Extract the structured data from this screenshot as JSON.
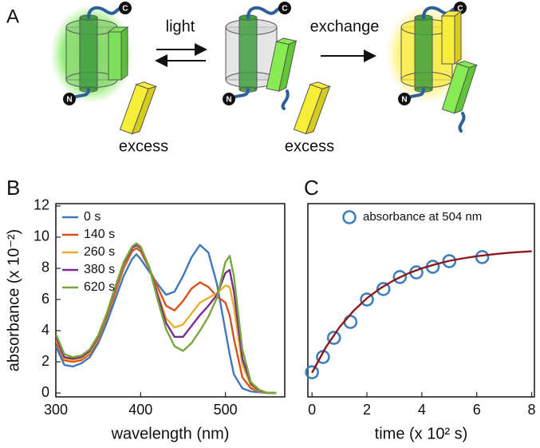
{
  "diagram": {
    "panel_label": "A",
    "steps": [
      "light",
      "exchange"
    ],
    "excess_labels": [
      "excess",
      "excess"
    ],
    "termini": [
      {
        "c": "C",
        "n": "N"
      },
      {
        "c": "C",
        "n": "N"
      },
      {
        "c": "C",
        "n": "N"
      }
    ]
  },
  "chart_data": [
    {
      "type": "line",
      "panel_label": "B",
      "x_label": "wavelength (nm)",
      "y_label": "absorbance (x 10⁻²)",
      "xlim": [
        300,
        570
      ],
      "ylim": [
        -0.25,
        12.15
      ],
      "xticks": [
        300,
        400,
        500
      ],
      "yticks": [
        0,
        2,
        4,
        6,
        8,
        10,
        12
      ],
      "legend": "top-left",
      "x": [
        300,
        310,
        320,
        330,
        340,
        350,
        360,
        370,
        380,
        390,
        395,
        400,
        410,
        420,
        430,
        440,
        450,
        460,
        470,
        480,
        490,
        500,
        505,
        510,
        520,
        530,
        540,
        550,
        560
      ],
      "series": [
        {
          "name": "0 s",
          "color": "#3f78bd",
          "values": [
            3.0,
            1.8,
            1.7,
            1.9,
            2.3,
            3.2,
            4.5,
            6.0,
            7.5,
            8.6,
            8.9,
            8.6,
            7.8,
            7.0,
            6.3,
            6.5,
            7.5,
            8.7,
            9.5,
            9.0,
            7.0,
            4.0,
            2.5,
            1.2,
            0.3,
            0.1,
            0.05,
            0,
            0
          ]
        },
        {
          "name": "140 s",
          "color": "#d5531c",
          "values": [
            3.3,
            2.1,
            2.0,
            2.1,
            2.5,
            3.4,
            4.8,
            6.4,
            8.0,
            9.1,
            9.3,
            9.1,
            8.0,
            6.8,
            5.6,
            5.3,
            5.9,
            6.7,
            7.1,
            6.8,
            6.2,
            5.8,
            5.0,
            3.5,
            1.0,
            0.3,
            0.1,
            0,
            0
          ]
        },
        {
          "name": "260 s",
          "color": "#e7b02c",
          "values": [
            3.5,
            2.2,
            2.1,
            2.2,
            2.6,
            3.5,
            4.9,
            6.6,
            8.2,
            9.3,
            9.5,
            9.3,
            8.1,
            6.4,
            4.8,
            4.2,
            4.4,
            5.1,
            5.8,
            6.1,
            6.4,
            6.9,
            6.8,
            5.5,
            1.8,
            0.5,
            0.1,
            0,
            0
          ]
        },
        {
          "name": "380 s",
          "color": "#7b2d8f",
          "values": [
            3.6,
            2.3,
            2.2,
            2.3,
            2.7,
            3.6,
            5.0,
            6.7,
            8.3,
            9.3,
            9.5,
            9.3,
            8.1,
            6.3,
            4.5,
            3.6,
            3.6,
            4.3,
            5.0,
            5.6,
            6.3,
            7.7,
            7.9,
            6.5,
            2.2,
            0.6,
            0.15,
            0,
            0
          ]
        },
        {
          "name": "620 s",
          "color": "#77a83a",
          "values": [
            3.8,
            2.5,
            2.3,
            2.4,
            2.8,
            3.7,
            5.1,
            6.8,
            8.4,
            9.4,
            9.6,
            9.4,
            8.1,
            6.0,
            4.1,
            3.0,
            2.7,
            3.2,
            4.0,
            4.9,
            6.1,
            8.4,
            8.8,
            7.5,
            2.8,
            0.7,
            0.2,
            0,
            0
          ]
        }
      ]
    },
    {
      "type": "scatter",
      "panel_label": "C",
      "x_label": "time (x 10² s)",
      "xlim": [
        -0.15,
        8.1
      ],
      "ylim": [
        -0.25,
        12.15
      ],
      "xticks": [
        0,
        2,
        4,
        6,
        8
      ],
      "legend": "top-center",
      "series": [
        {
          "name": "absorbance at 504 nm",
          "color": "#3f7fbf",
          "mode": "markers",
          "x": [
            0,
            0.4,
            0.8,
            1.4,
            2.0,
            2.6,
            3.2,
            3.8,
            4.4,
            5.0,
            6.2
          ],
          "values": [
            1.33,
            2.31,
            3.54,
            4.56,
            6.0,
            6.67,
            7.44,
            7.74,
            8.1,
            8.46,
            8.72
          ]
        },
        {
          "color": "#8b1a1a",
          "mode": "line",
          "x": [
            0,
            0.5,
            1,
            1.5,
            2,
            2.5,
            3,
            3.5,
            4,
            4.5,
            5,
            5.5,
            6,
            6.5,
            7,
            7.5,
            8
          ],
          "values": [
            1.3,
            2.92,
            4.22,
            5.25,
            6.08,
            6.73,
            7.25,
            7.67,
            8.0,
            8.26,
            8.48,
            8.64,
            8.78,
            8.88,
            8.97,
            9.04,
            9.09
          ]
        }
      ]
    }
  ]
}
